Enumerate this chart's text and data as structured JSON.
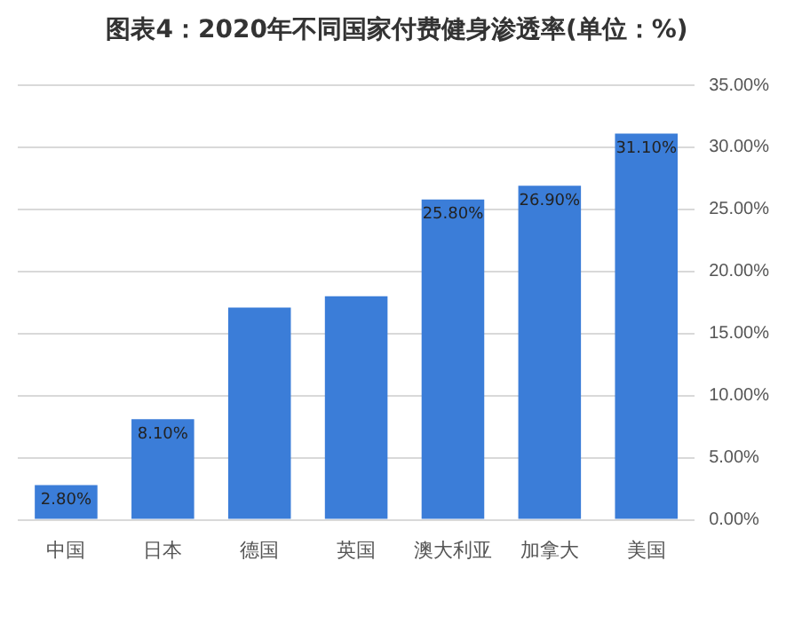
{
  "chart_data": {
    "type": "bar",
    "title": "图表4：2020年不同国家付费健身渗透率(单位：%)",
    "categories": [
      "中国",
      "日本",
      "德国",
      "英国",
      "澳大利亚",
      "加拿大",
      "美国"
    ],
    "values": [
      2.8,
      8.1,
      17.1,
      18.0,
      25.8,
      26.9,
      31.1
    ],
    "value_labels": [
      "2.80%",
      "8.10%",
      null,
      null,
      "25.80%",
      "26.90%",
      "31.10%"
    ],
    "color": "#3b7dd8",
    "ylim": [
      0,
      35
    ],
    "yticks": [
      {
        "value": 0,
        "label": "0.00%"
      },
      {
        "value": 5,
        "label": "5.00%"
      },
      {
        "value": 10,
        "label": "10.00%"
      },
      {
        "value": 15,
        "label": "15.00%"
      },
      {
        "value": 20,
        "label": "20.00%"
      },
      {
        "value": 25,
        "label": "25.00%"
      },
      {
        "value": 30,
        "label": "30.00%"
      },
      {
        "value": 35,
        "label": "35.00%"
      }
    ],
    "grid": "y"
  }
}
